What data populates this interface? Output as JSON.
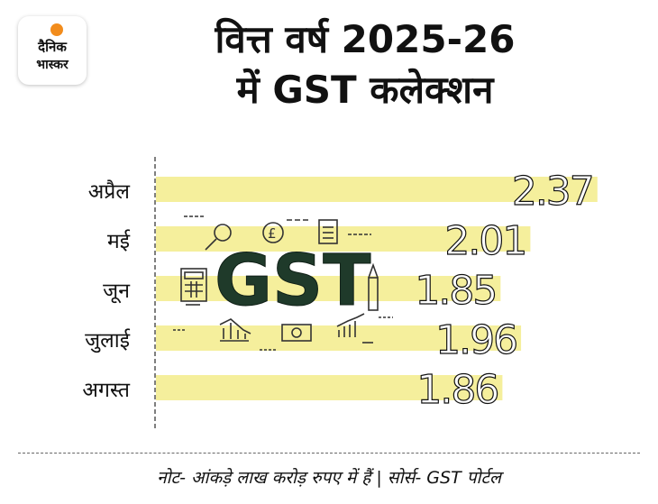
{
  "logo": {
    "line1": "दैनिक",
    "line2": "भास्कर"
  },
  "title": {
    "line1": "वित्त वर्ष 2025-26",
    "line2": "में GST कलेक्शन"
  },
  "chart_data": {
    "type": "bar",
    "orientation": "horizontal",
    "categories": [
      "अप्रैल",
      "मई",
      "जून",
      "जुलाई",
      "अगस्त"
    ],
    "values": [
      2.37,
      2.01,
      1.85,
      1.96,
      1.86
    ],
    "data_labels": [
      "2.37",
      "2.01",
      "1.85",
      "1.96",
      "1.86"
    ],
    "bar_color": "#f5ef9c",
    "xlim": [
      0,
      2.4
    ]
  },
  "illustration": {
    "text": "GST"
  },
  "footer": {
    "note": "नोट- आंकड़े लाख करोड़ रुपए में हैं | सोर्स- GST पोर्टल"
  }
}
